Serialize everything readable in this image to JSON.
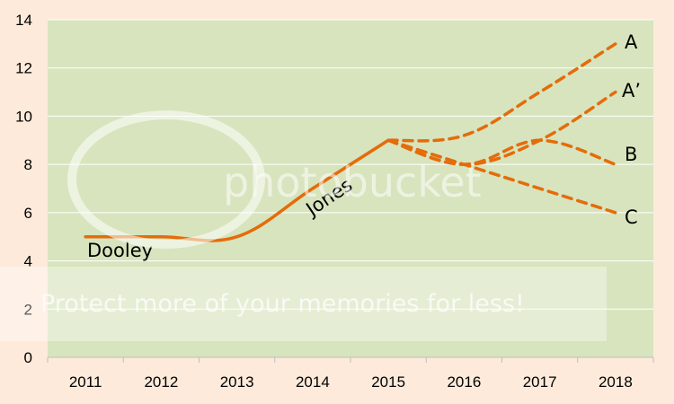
{
  "chart_data": {
    "type": "line",
    "title": "",
    "xlabel": "",
    "ylabel": "",
    "categories": [
      "2011",
      "2012",
      "2013",
      "2014",
      "2015",
      "2016",
      "2017",
      "2018"
    ],
    "ylim": [
      0,
      14
    ],
    "yticks": [
      0,
      2,
      4,
      6,
      8,
      10,
      12,
      14
    ],
    "grid": true,
    "colors": {
      "plot_bg": "#d7e4bd",
      "page_bg": "#fdeada",
      "line": "#e46c0a",
      "grid": "#ffffff"
    },
    "series": [
      {
        "name": "Dooley",
        "style": "solid",
        "points": [
          [
            "2011",
            5.0
          ],
          [
            "2012",
            5.0
          ],
          [
            "2013",
            5.0
          ],
          [
            "2014",
            7.0
          ],
          [
            "2015",
            9.0
          ]
        ]
      },
      {
        "name": "A",
        "style": "dashed",
        "points": [
          [
            "2015",
            9.0
          ],
          [
            "2016",
            9.2
          ],
          [
            "2017",
            11.0
          ],
          [
            "2018",
            13.0
          ]
        ]
      },
      {
        "name": "A’",
        "style": "dashed",
        "points": [
          [
            "2015",
            9.0
          ],
          [
            "2016",
            8.0
          ],
          [
            "2017",
            9.0
          ],
          [
            "2018",
            11.0
          ]
        ]
      },
      {
        "name": "B",
        "style": "dashed",
        "points": [
          [
            "2015",
            9.0
          ],
          [
            "2016",
            8.0
          ],
          [
            "2017",
            9.0
          ],
          [
            "2018",
            8.0
          ]
        ]
      },
      {
        "name": "C",
        "style": "dashed",
        "points": [
          [
            "2015",
            9.0
          ],
          [
            "2016",
            8.0
          ],
          [
            "2017",
            7.0
          ],
          [
            "2018",
            6.0
          ]
        ]
      }
    ],
    "annotations": [
      {
        "text": "Dooley"
      },
      {
        "text": "Jones"
      },
      {
        "text": "A"
      },
      {
        "text": "A’"
      },
      {
        "text": "B"
      },
      {
        "text": "C"
      }
    ]
  },
  "watermark": {
    "logo_text": "photobucket",
    "banner_text": "Protect more of your memories for less!"
  }
}
